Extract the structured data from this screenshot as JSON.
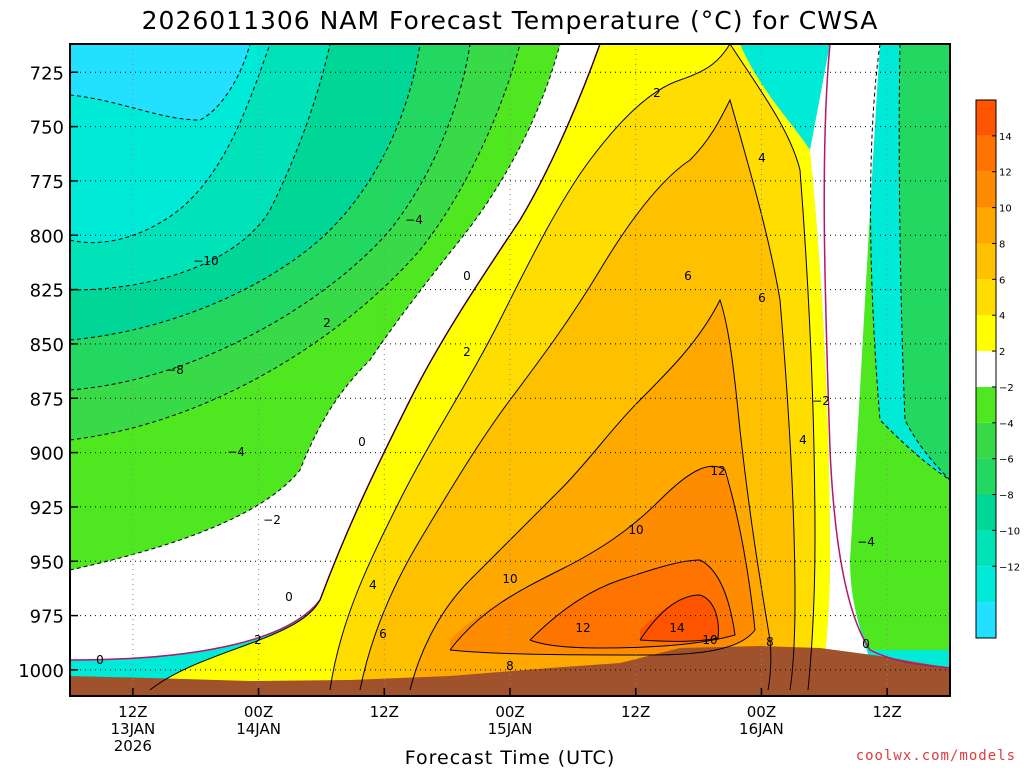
{
  "chart_data": {
    "type": "heatmap",
    "title": "2026011306 NAM Forecast Temperature (°C) for CWSA",
    "xlabel": "Forecast Time (UTC)",
    "ylabel": "",
    "y_ticks": [
      "725",
      "750",
      "775",
      "800",
      "825",
      "850",
      "875",
      "900",
      "925",
      "950",
      "975",
      "1000"
    ],
    "x_ticks": [
      {
        "hour": 6,
        "lines": [
          "12Z",
          "13JAN",
          "2026"
        ]
      },
      {
        "hour": 18,
        "lines": [
          "00Z",
          "14JAN"
        ]
      },
      {
        "hour": 30,
        "lines": [
          "12Z"
        ]
      },
      {
        "hour": 42,
        "lines": [
          "00Z",
          "15JAN"
        ]
      },
      {
        "hour": 54,
        "lines": [
          "12Z"
        ]
      },
      {
        "hour": 66,
        "lines": [
          "00Z",
          "16JAN"
        ]
      },
      {
        "hour": 78,
        "lines": [
          "12Z"
        ]
      }
    ],
    "x_range_hours": [
      0,
      84
    ],
    "y_range_hpa": [
      712,
      1012
    ],
    "colorbar": {
      "levels": [
        -16,
        -14,
        -12,
        -10,
        -8,
        -6,
        -4,
        -2,
        2,
        4,
        6,
        8,
        10,
        12,
        14,
        16
      ],
      "tick_labels": [
        "14",
        "12",
        "10",
        "8",
        "6",
        "4",
        "2",
        "−2",
        "−4",
        "−6",
        "−8",
        "−10",
        "−12"
      ],
      "colors": {
        "-16": "#22e0ff",
        "-14": "#00ead8",
        "-12": "#00e2b8",
        "-10": "#00d696",
        "-8": "#22d860",
        "-6": "#38da48",
        "-4": "#4fe820",
        "-2": "#ffffff",
        "2": "#ffff00",
        "4": "#ffdd00",
        "6": "#ffc000",
        "8": "#ffa800",
        "10": "#ff8c00",
        "12": "#ff7400",
        "14": "#ff5400"
      },
      "ground_color": "#a0522d"
    },
    "contour_labels": [
      "2",
      "4",
      "−4",
      "−10",
      "0",
      "2",
      "6",
      "6",
      "2",
      "−8",
      "−4",
      "0",
      "4",
      "12",
      "10",
      "−2",
      "−2",
      "0",
      "4",
      "10",
      "2",
      "6",
      "12",
      "14",
      "10",
      "8",
      "8",
      "−4",
      "0",
      "0"
    ],
    "grid": true
  },
  "footer": {
    "credit": "coolwx.com/models"
  }
}
